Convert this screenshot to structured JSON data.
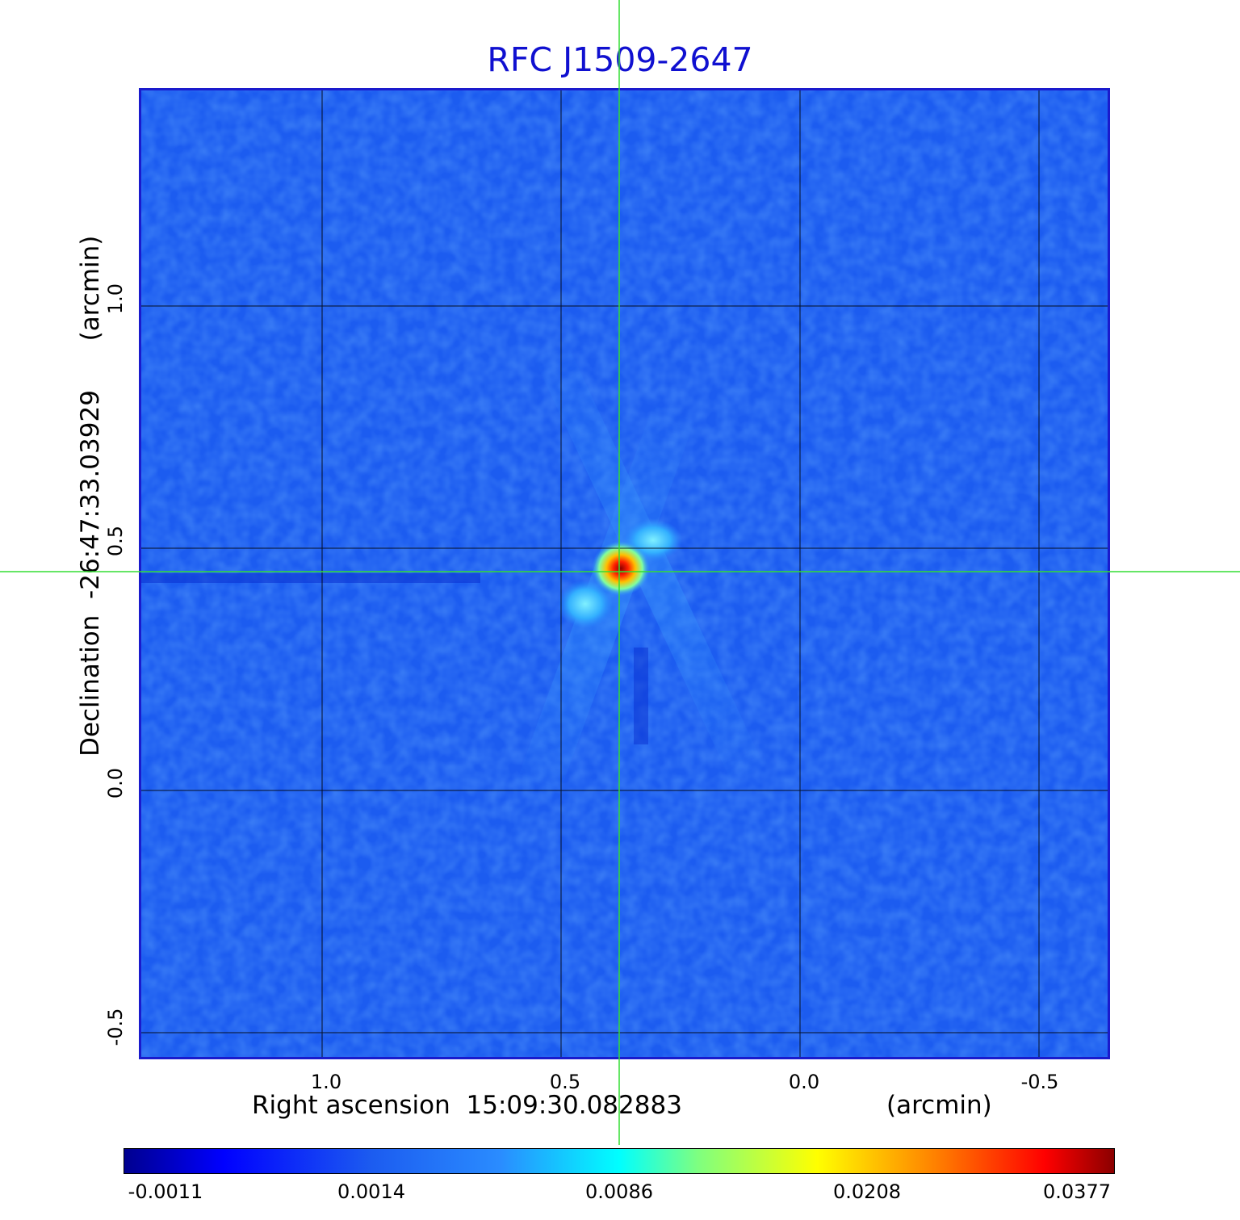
{
  "title": "RFC J1509-2647",
  "x_axis": {
    "label": "Right ascension",
    "center_value": "15:09:30.082883",
    "unit": "(arcmin)",
    "ticks": [
      "1.0",
      "0.5",
      "0.0",
      "-0.5"
    ]
  },
  "y_axis": {
    "label": "Declination",
    "center_value": "-26:47:33.03929",
    "unit": "(arcmin)",
    "ticks": [
      "1.0",
      "0.5",
      "0.0",
      "-0.5"
    ]
  },
  "colorbar": {
    "ticks": [
      "-0.0011",
      "0.0014",
      "0.0086",
      "0.0208",
      "0.0377"
    ]
  },
  "colors": {
    "background_map": "#1c5cf0",
    "grid": "#000000",
    "crosshair": "#33dd33",
    "title": "#1010d0"
  }
}
